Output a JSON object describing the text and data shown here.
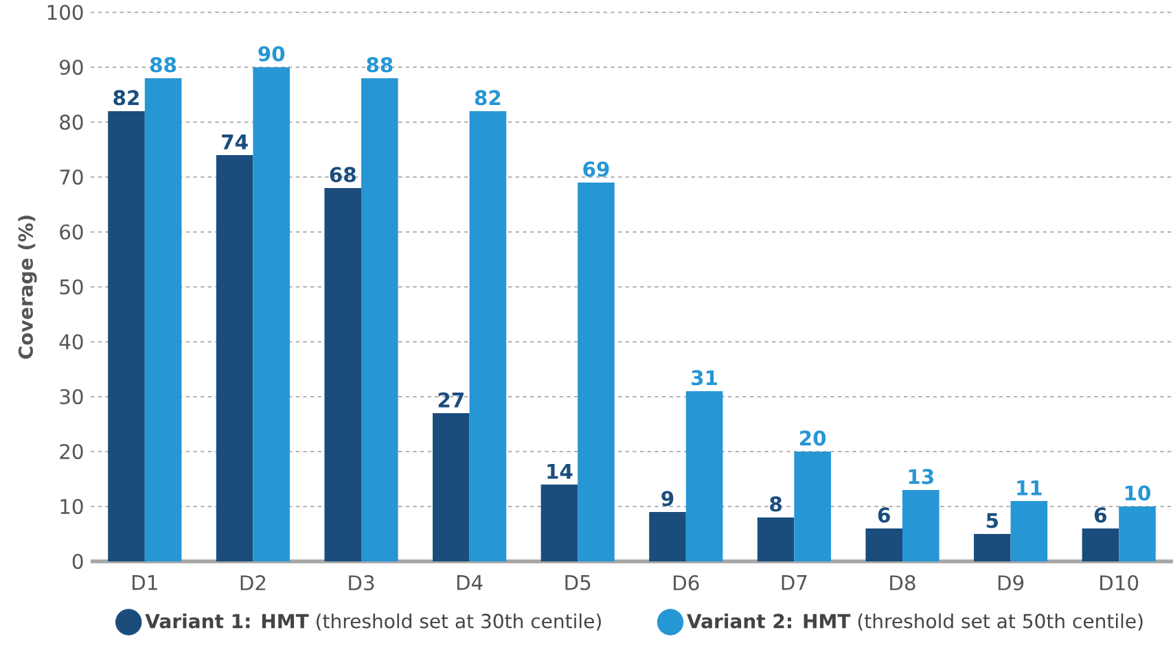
{
  "chart_data": {
    "type": "bar",
    "ylabel": "Coverage (%)",
    "categories": [
      "D1",
      "D2",
      "D3",
      "D4",
      "D5",
      "D6",
      "D7",
      "D8",
      "D9",
      "D10"
    ],
    "series": [
      {
        "name": "**Variant 1: HMT** (threshold set at 30th centile)",
        "color": "#1b4d7c",
        "values": [
          82,
          74,
          68,
          27,
          14,
          9,
          8,
          6,
          5,
          6
        ]
      },
      {
        "name": "**Variant 2: HMT** (threshold set at 50th centile)",
        "color": "#2696d5",
        "values": [
          88,
          90,
          88,
          82,
          69,
          31,
          20,
          13,
          11,
          10
        ]
      }
    ],
    "ylim": [
      0,
      100
    ],
    "yticks": [
      0,
      10,
      20,
      30,
      40,
      50,
      60,
      70,
      80,
      90,
      100
    ],
    "grid": "y",
    "legend": "bottom",
    "data_labels": true
  }
}
